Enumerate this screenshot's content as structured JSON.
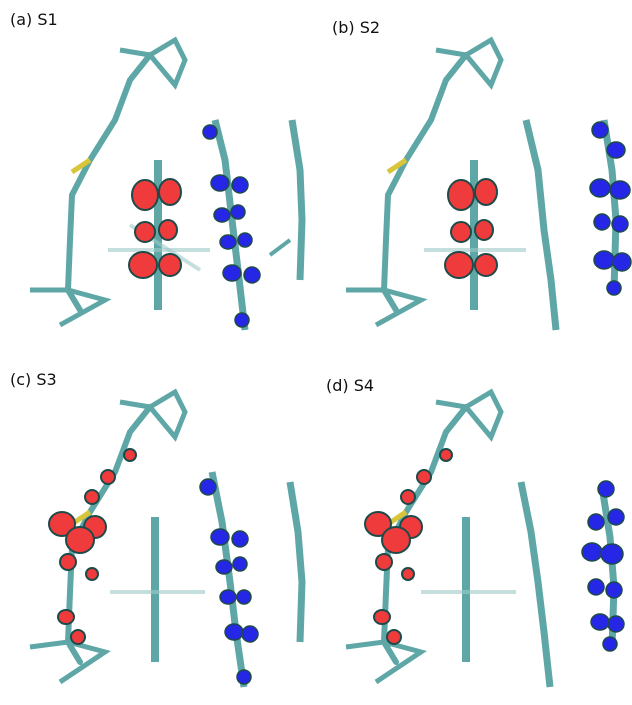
{
  "figure": {
    "panels": [
      {
        "id": "S1",
        "label": "(a) S1"
      },
      {
        "id": "S2",
        "label": "(b) S2"
      },
      {
        "id": "S3",
        "label": "(c) S3"
      },
      {
        "id": "S4",
        "label": "(d) S4"
      }
    ]
  },
  "colors": {
    "bond_cyan": "#5fa7a7",
    "bond_light": "#cfd8d8",
    "hydrogen": "#e8e8e8",
    "sulfur": "#d8c53a",
    "nitrogen": "#3b3bd6",
    "oxygen": "#c83232",
    "lobe_red": "#ef3b3b",
    "lobe_blue": "#2626e6",
    "lobe_outline": "#1e4a4a"
  }
}
